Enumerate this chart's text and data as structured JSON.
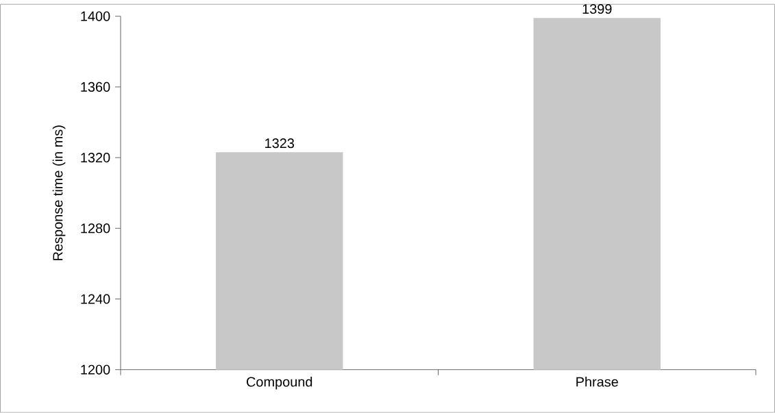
{
  "chart_data": {
    "type": "bar",
    "ylabel": "Response time (in ms)",
    "categories": [
      "Compound",
      "Phrase"
    ],
    "values": [
      1323,
      1399
    ],
    "color": "#c8c8c8",
    "ylim": [
      1200,
      1400
    ],
    "yticks": [
      1200,
      1240,
      1280,
      1320,
      1360,
      1400
    ],
    "data_labels": true
  }
}
